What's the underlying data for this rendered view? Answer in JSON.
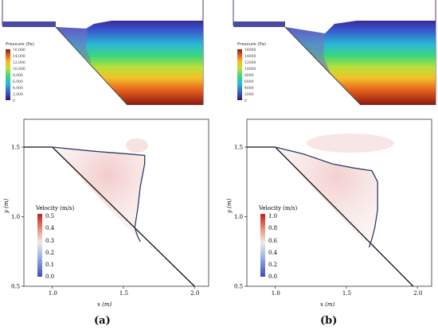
{
  "panels": {
    "a": {
      "label": "(a)",
      "pressure_colorbar": {
        "title": "Pressure (Pa)",
        "ticks": [
          "16,000",
          "14,000",
          "12,000",
          "10,000",
          "8,000",
          "6,000",
          "4,000",
          "2,000",
          "0"
        ]
      },
      "velocity_colorbar": {
        "title": "Velocity (m/s)",
        "ticks": [
          "0.5",
          "0.4",
          "0.3",
          "0.2",
          "0.1",
          "0.0"
        ]
      }
    },
    "b": {
      "label": "(b)",
      "pressure_colorbar": {
        "title": "Pressure (Pa)",
        "ticks": [
          "16000",
          "14000",
          "12000",
          "10000",
          "8000",
          "6000",
          "4000",
          "2000",
          "0"
        ]
      },
      "velocity_colorbar": {
        "title": "Velocity (m/s)",
        "ticks": [
          "1.0",
          "0.8",
          "0.6",
          "0.4",
          "0.2",
          "0.0"
        ]
      }
    }
  },
  "chart_data": [
    {
      "type": "line",
      "panel": "a",
      "xlabel": "x (m)",
      "ylabel": "y (m)",
      "xticks": [
        "1.0",
        "1.5",
        "2.0"
      ],
      "yticks": [
        "1.5",
        "1.0",
        "0.5"
      ],
      "xlim": [
        0.8,
        2.1
      ],
      "ylim": [
        0.5,
        1.7
      ],
      "series": [
        {
          "x": [
            0.8,
            1.0,
            2.0
          ],
          "y": [
            1.5,
            1.5,
            0.5
          ]
        },
        {
          "x": [
            1.0,
            1.3,
            1.55,
            1.65,
            1.65,
            1.62,
            1.6,
            1.58,
            1.6,
            1.62
          ],
          "y": [
            1.5,
            1.47,
            1.45,
            1.44,
            1.38,
            1.22,
            1.05,
            0.92,
            0.86,
            0.82
          ]
        }
      ]
    },
    {
      "type": "line",
      "panel": "b",
      "xlabel": "x (m)",
      "ylabel": "y (m)",
      "xticks": [
        "1.0",
        "1.5",
        "2.0"
      ],
      "yticks": [
        "1.5",
        "1.0",
        "0.5"
      ],
      "xlim": [
        0.8,
        2.1
      ],
      "ylim": [
        0.5,
        1.7
      ],
      "series": [
        {
          "x": [
            0.8,
            1.0,
            1.97
          ],
          "y": [
            1.5,
            1.5,
            0.5
          ]
        },
        {
          "x": [
            1.0,
            1.2,
            1.4,
            1.55,
            1.68,
            1.72,
            1.72,
            1.7,
            1.68,
            1.66
          ],
          "y": [
            1.5,
            1.45,
            1.38,
            1.35,
            1.33,
            1.25,
            1.05,
            0.92,
            0.84,
            0.78
          ]
        }
      ]
    }
  ]
}
